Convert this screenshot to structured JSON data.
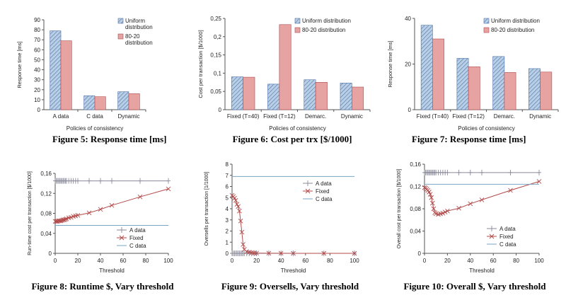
{
  "colors": {
    "uniform": "#b8cfe6",
    "uniform_stroke": "#4f72a8",
    "eighty": "#e7a2a2",
    "eighty_stroke": "#b04a4a",
    "a_data": "#8a8a9a",
    "fixed": "#b24a4a",
    "c_data": "#7aa6c2",
    "axis": "#555555"
  },
  "captions": {
    "fig5": "Figure 5: Response time [ms]",
    "fig6": "Figure 6: Cost per trx [$/1000]",
    "fig7": "Figure 7: Response time [ms]",
    "fig8": "Figure 8: Runtime $, Vary threshold",
    "fig9": "Figure 9: Oversells, Vary threshold",
    "fig10": "Figure 10: Overall $, Vary threshold"
  },
  "chart_data": [
    {
      "id": "fig5",
      "type": "bar",
      "categories": [
        "A data",
        "C data",
        "Dynamic"
      ],
      "series": [
        {
          "name": "Uniform distribution",
          "values": [
            79,
            14,
            18
          ]
        },
        {
          "name": "80-20 distribution",
          "values": [
            69,
            13,
            16
          ]
        }
      ],
      "xlabel": "Policies of consistency",
      "ylabel": "Response time [ms]",
      "ylim": [
        0,
        90
      ],
      "yticks": [
        "0",
        "10",
        "20",
        "30",
        "40",
        "50",
        "60",
        "70",
        "80",
        "90"
      ],
      "legend": [
        {
          "lines": [
            "Uniform",
            "distribution"
          ]
        },
        {
          "lines": [
            "80-20",
            "distribution"
          ]
        }
      ],
      "legend_placement": "top-right"
    },
    {
      "id": "fig6",
      "type": "bar",
      "categories": [
        "Fixed (T=40)",
        "Fixed (T=12)",
        "Demarc.",
        "Dynamic"
      ],
      "series": [
        {
          "name": "Uniform distribution",
          "values": [
            0.09,
            0.07,
            0.082,
            0.073
          ]
        },
        {
          "name": "80-20 distribution",
          "values": [
            0.089,
            0.233,
            0.075,
            0.062
          ]
        }
      ],
      "xlabel": "Policies of consistency",
      "ylabel": "Cost per transaction [$/1000]",
      "ylim": [
        0,
        0.25
      ],
      "yticks": [
        "0",
        "0,05",
        "0,1",
        "0,15",
        "0,2",
        "0,25"
      ],
      "legend": [
        {
          "lines": [
            "Uniform distribution"
          ]
        },
        {
          "lines": [
            "80-20 distribution"
          ]
        }
      ],
      "legend_placement": "top-right"
    },
    {
      "id": "fig7",
      "type": "bar",
      "categories": [
        "Fixed (T=40)",
        "Fixed (T=12)",
        "Demarc.",
        "Dynamic"
      ],
      "series": [
        {
          "name": "Uniform distribution",
          "values": [
            37,
            22.5,
            23.3,
            18
          ]
        },
        {
          "name": "80-20 distribution",
          "values": [
            31,
            18.8,
            16.3,
            16.5
          ]
        }
      ],
      "xlabel": "Policies of consistency",
      "ylabel": "Response time [ms]",
      "ylim": [
        0,
        40
      ],
      "yticks": [
        "0",
        "20",
        "40"
      ],
      "legend": [
        {
          "lines": [
            "Uniform distribution"
          ]
        },
        {
          "lines": [
            "80-20 distribution"
          ]
        }
      ],
      "legend_placement": "top-right"
    },
    {
      "id": "fig8",
      "type": "line",
      "xlabel": "Threshold",
      "ylabel": "Run-time cost per transaction [$/1000]",
      "xlim": [
        0,
        100
      ],
      "ylim": [
        0,
        0.16
      ],
      "xticks": [
        "0",
        "20",
        "40",
        "60",
        "80",
        "100"
      ],
      "yticks": [
        "0",
        "0,04",
        "0,08",
        "0,12",
        "0,16"
      ],
      "legend_placement": "bottom-right",
      "series": [
        {
          "name": "A data",
          "marker": "plus",
          "x": [
            0,
            1,
            2,
            3,
            4,
            5,
            6,
            7,
            8,
            9,
            10,
            12,
            14,
            16,
            18,
            20,
            30,
            40,
            50,
            75,
            100
          ],
          "y": [
            0.145,
            0.145,
            0.145,
            0.145,
            0.145,
            0.145,
            0.145,
            0.145,
            0.145,
            0.145,
            0.145,
            0.145,
            0.145,
            0.145,
            0.145,
            0.145,
            0.145,
            0.145,
            0.145,
            0.145,
            0.145
          ]
        },
        {
          "name": "Fixed",
          "marker": "x",
          "x": [
            0,
            1,
            2,
            3,
            4,
            5,
            6,
            7,
            8,
            9,
            10,
            12,
            14,
            16,
            18,
            20,
            30,
            40,
            50,
            75,
            100
          ],
          "y": [
            0.064,
            0.064,
            0.064,
            0.065,
            0.065,
            0.065,
            0.066,
            0.067,
            0.067,
            0.068,
            0.069,
            0.071,
            0.072,
            0.074,
            0.075,
            0.076,
            0.081,
            0.088,
            0.096,
            0.113,
            0.129
          ]
        },
        {
          "name": "C data",
          "marker": "none",
          "x": [
            0,
            100
          ],
          "y": [
            0.056,
            0.056
          ]
        }
      ]
    },
    {
      "id": "fig9",
      "type": "line",
      "xlabel": "Threshold",
      "ylabel": "Oversells per transaction [1/1000]",
      "xlim": [
        0,
        100
      ],
      "ylim": [
        0,
        8
      ],
      "xticks": [
        "0",
        "20",
        "40",
        "60",
        "80",
        "100"
      ],
      "yticks": [
        "0",
        "1",
        "2",
        "3",
        "4",
        "5",
        "6",
        "7",
        "8"
      ],
      "legend_placement": "top-right",
      "series": [
        {
          "name": "A data",
          "marker": "plus",
          "x": [
            0,
            1,
            2,
            3,
            4,
            5,
            6,
            7,
            8,
            9,
            10,
            12,
            14,
            16,
            18,
            20,
            30,
            40,
            50,
            75,
            100
          ],
          "y": [
            0,
            0,
            0,
            0,
            0,
            0,
            0,
            0,
            0,
            0,
            0,
            0,
            0,
            0,
            0,
            0,
            0,
            0,
            0,
            0,
            0
          ]
        },
        {
          "name": "Fixed",
          "marker": "x",
          "x": [
            0,
            1,
            2,
            3,
            4,
            5,
            6,
            7,
            8,
            9,
            10,
            12,
            14,
            16,
            18,
            20,
            30,
            40,
            50,
            75,
            100
          ],
          "y": [
            5.2,
            5.1,
            4.95,
            4.75,
            4.4,
            4.2,
            3.8,
            2.9,
            1.9,
            0.8,
            0.35,
            0.15,
            0.1,
            0.05,
            0.03,
            0.02,
            0.01,
            0.01,
            0,
            0,
            0
          ]
        },
        {
          "name": "C data",
          "marker": "none",
          "x": [
            0,
            100
          ],
          "y": [
            6.9,
            6.9
          ]
        }
      ]
    },
    {
      "id": "fig10",
      "type": "line",
      "xlabel": "Threshold",
      "ylabel": "Overall cost per transaction [$/1000]",
      "xlim": [
        0,
        100
      ],
      "ylim": [
        0,
        0.16
      ],
      "xticks": [
        "0",
        "20",
        "40",
        "60",
        "80",
        "100"
      ],
      "yticks": [
        "0",
        "0,04",
        "0,08",
        "0,12",
        "0,16"
      ],
      "legend_placement": "bottom-right",
      "series": [
        {
          "name": "A data",
          "marker": "plus",
          "x": [
            0,
            1,
            2,
            3,
            4,
            5,
            6,
            7,
            8,
            9,
            10,
            12,
            14,
            16,
            18,
            20,
            30,
            40,
            50,
            75,
            100
          ],
          "y": [
            0.145,
            0.145,
            0.145,
            0.145,
            0.145,
            0.145,
            0.145,
            0.145,
            0.145,
            0.145,
            0.145,
            0.145,
            0.145,
            0.145,
            0.145,
            0.145,
            0.145,
            0.145,
            0.145,
            0.145,
            0.145
          ]
        },
        {
          "name": "Fixed",
          "marker": "x",
          "x": [
            0,
            1,
            2,
            3,
            4,
            5,
            6,
            7,
            8,
            9,
            10,
            12,
            14,
            16,
            18,
            20,
            30,
            40,
            50,
            75,
            100
          ],
          "y": [
            0.118,
            0.117,
            0.115,
            0.113,
            0.11,
            0.106,
            0.1,
            0.09,
            0.08,
            0.073,
            0.071,
            0.07,
            0.071,
            0.072,
            0.074,
            0.076,
            0.081,
            0.089,
            0.096,
            0.113,
            0.129
          ]
        },
        {
          "name": "C data",
          "marker": "none",
          "x": [
            0,
            100
          ],
          "y": [
            0.124,
            0.124
          ]
        }
      ]
    }
  ]
}
